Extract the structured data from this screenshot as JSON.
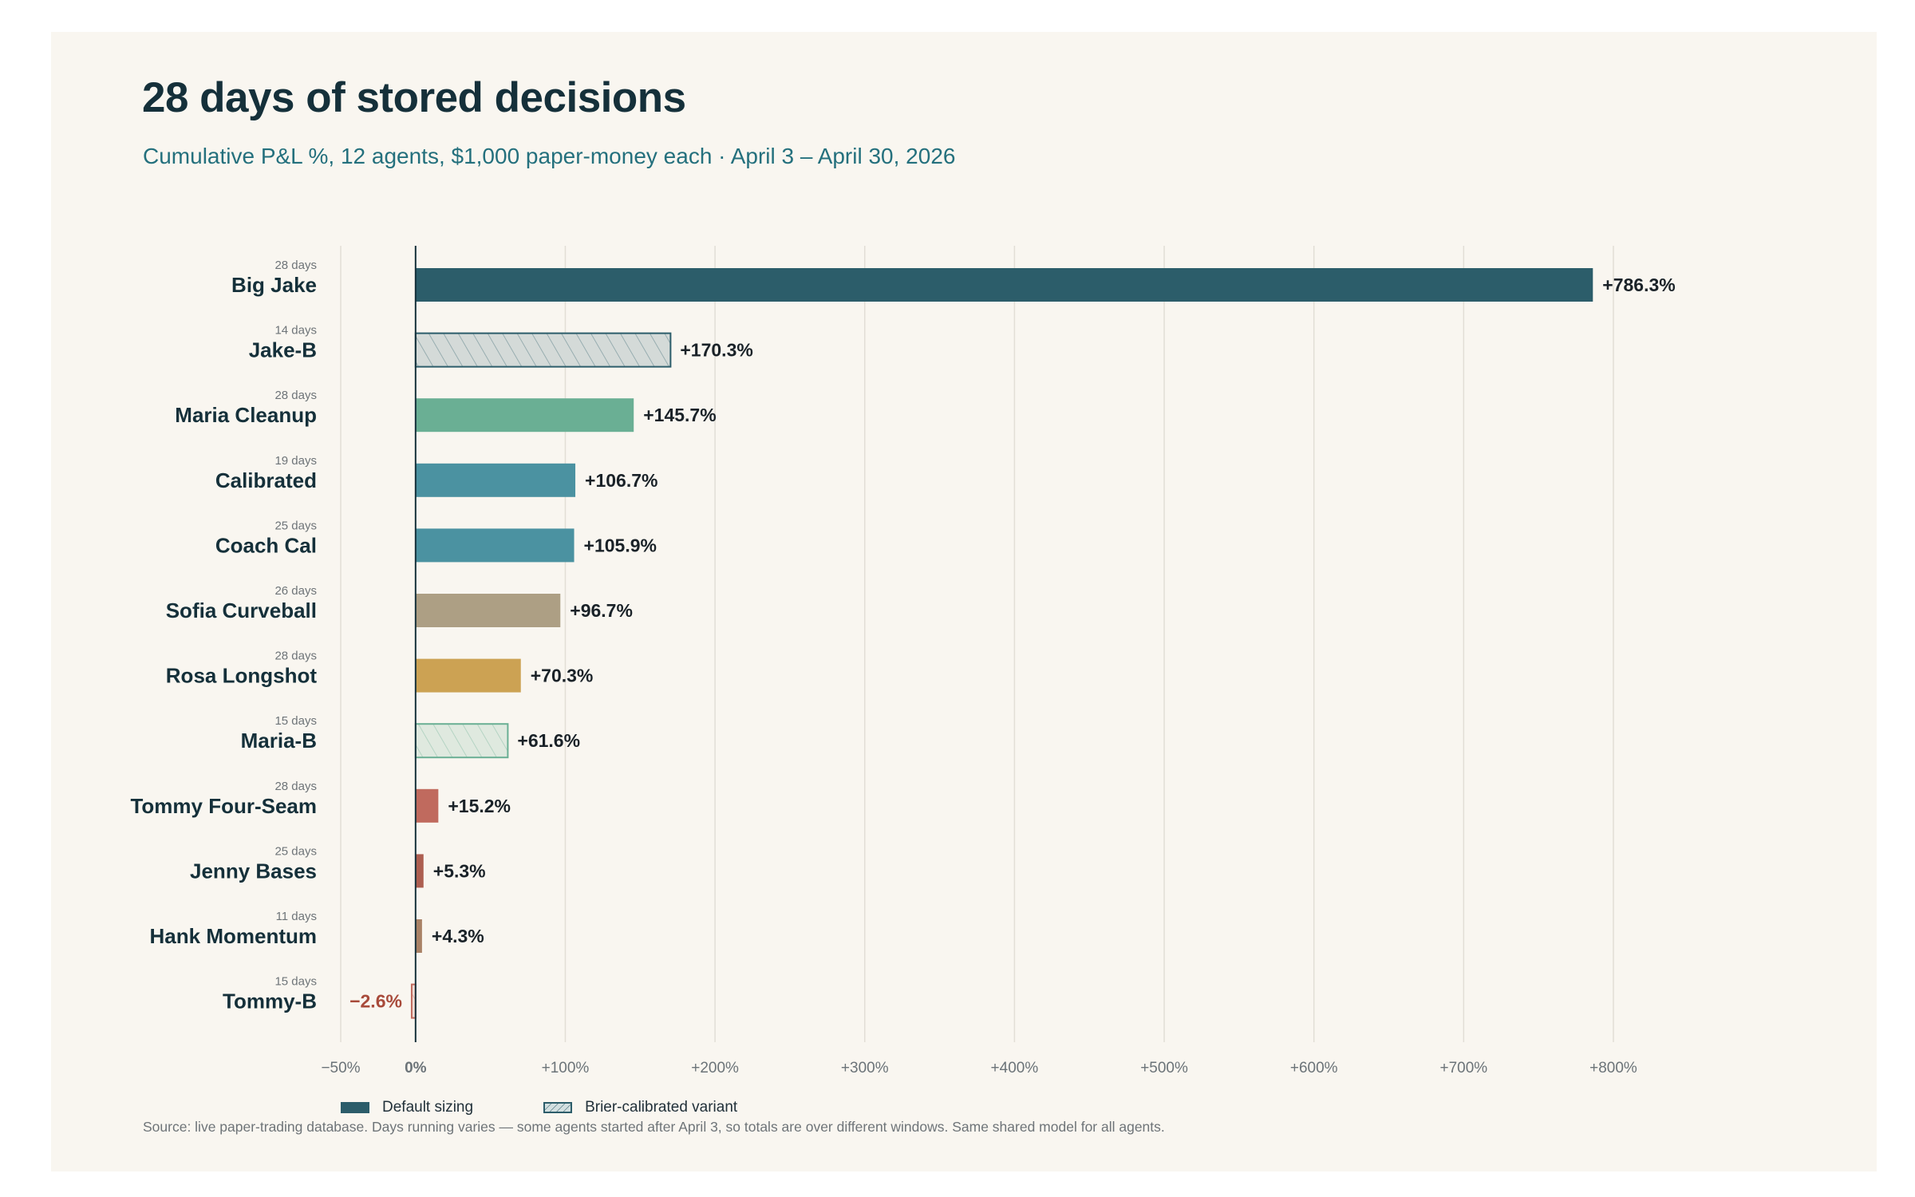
{
  "title": "28 days of stored decisions",
  "subtitle": "Cumulative P&L %, 12 agents, $1,000 paper-money each · April 3 – April 30, 2026",
  "source": "Source: live paper-trading database. Days running varies — some agents started after April 3, so totals are over different windows. Same shared model for all agents.",
  "legend": {
    "default": "Default sizing",
    "variant": "Brier-calibrated variant"
  },
  "colors": {
    "default_sizing": "#2c5d6a",
    "axis": "#15303a",
    "grid": "#e2ded6",
    "negative_label": "#a84a3a"
  },
  "chart_data": {
    "type": "bar",
    "orientation": "horizontal",
    "x_ticks": [
      "−50%",
      "0%",
      "+100%",
      "+200%",
      "+300%",
      "+400%",
      "+500%",
      "+600%",
      "+700%",
      "+800%"
    ],
    "x_tick_values": [
      -50,
      0,
      100,
      200,
      300,
      400,
      500,
      600,
      700,
      800
    ],
    "xlim": [
      -50,
      800
    ],
    "grid": true,
    "legend_position": "bottom-left",
    "series": [
      {
        "agent": "Big Jake",
        "days": "28 days",
        "value": 786.3,
        "label": "+786.3%",
        "color": "#2c5d6a",
        "variant": false
      },
      {
        "agent": "Jake-B",
        "days": "14 days",
        "value": 170.3,
        "label": "+170.3%",
        "color": "#2c5d6a",
        "variant": true
      },
      {
        "agent": "Maria Cleanup",
        "days": "28 days",
        "value": 145.7,
        "label": "+145.7%",
        "color": "#6aaf94",
        "variant": false
      },
      {
        "agent": "Calibrated",
        "days": "19 days",
        "value": 106.7,
        "label": "+106.7%",
        "color": "#4b92a1",
        "variant": false
      },
      {
        "agent": "Coach Cal",
        "days": "25 days",
        "value": 105.9,
        "label": "+105.9%",
        "color": "#4b92a1",
        "variant": false
      },
      {
        "agent": "Sofia Curveball",
        "days": "26 days",
        "value": 96.7,
        "label": "+96.7%",
        "color": "#ad9f84",
        "variant": false
      },
      {
        "agent": "Rosa Longshot",
        "days": "28 days",
        "value": 70.3,
        "label": "+70.3%",
        "color": "#cca253",
        "variant": false
      },
      {
        "agent": "Maria-B",
        "days": "15 days",
        "value": 61.6,
        "label": "+61.6%",
        "color": "#6aaf94",
        "variant": true
      },
      {
        "agent": "Tommy Four-Seam",
        "days": "28 days",
        "value": 15.2,
        "label": "+15.2%",
        "color": "#c06a5e",
        "variant": false
      },
      {
        "agent": "Jenny Bases",
        "days": "25 days",
        "value": 5.3,
        "label": "+5.3%",
        "color": "#ad5e50",
        "variant": false
      },
      {
        "agent": "Hank Momentum",
        "days": "11 days",
        "value": 4.3,
        "label": "+4.3%",
        "color": "#a98266",
        "variant": false
      },
      {
        "agent": "Tommy-B",
        "days": "15 days",
        "value": -2.6,
        "label": "−2.6%",
        "color": "#c06a5e",
        "variant": true
      }
    ]
  }
}
